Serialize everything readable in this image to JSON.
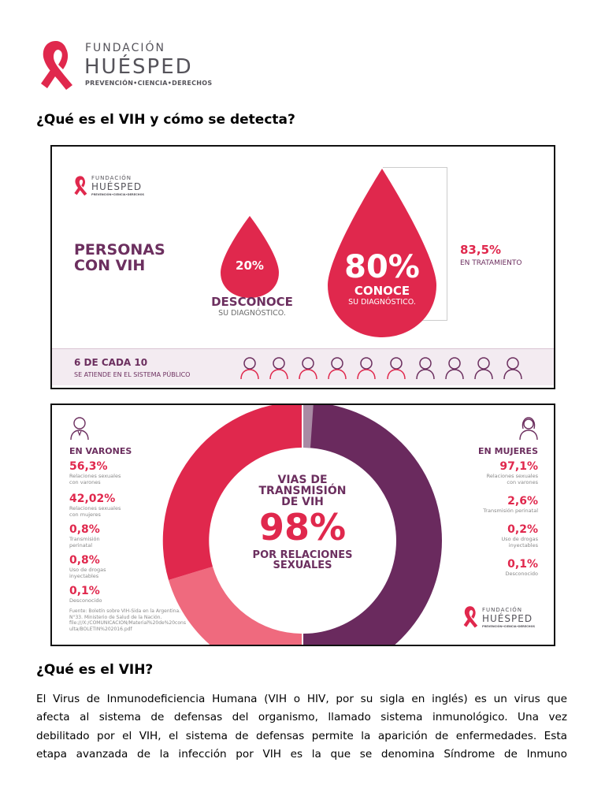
{
  "header": {
    "logo_line1": "FUNDACIÓN",
    "logo_line2": "HUÉSPED",
    "logo_line3": "PREVENCIÓN•CIENCIA•DERECHOS"
  },
  "section1_title": "¿Qué es el VIH y cómo se detecta?",
  "infographic1": {
    "logo_line1": "FUNDACIÓN",
    "logo_line2": "HUÉSPED",
    "logo_line3": "PREVENCIÓN•CIENCIA•DERECHOS",
    "heading_line1": "PERSONAS",
    "heading_line2": "CON VIH",
    "small_drop_value": "20%",
    "small_label_1": "DESCONOCE",
    "small_label_2": "SU DIAGNÓSTICO.",
    "big_drop_value": "80%",
    "big_drop_label_1": "CONOCE",
    "big_drop_label_2": "SU DIAGNÓSTICO.",
    "treatment_value": "83,5%",
    "treatment_label": "EN TRATAMIENTO",
    "footer_big": "6 DE CADA 10",
    "footer_small": "SE ATIENDE EN EL SISTEMA PÚBLICO",
    "colors": {
      "red": "#e0284d",
      "mauve": "#6c2f5f",
      "band": "#f3ebf1"
    }
  },
  "infographic2": {
    "left_heading": "EN VARONES",
    "left_items": [
      {
        "value": "56,3%",
        "label_1": "Relaciones sexuales",
        "label_2": "con varones"
      },
      {
        "value": "42,02%",
        "label_1": "Relaciones sexuales",
        "label_2": "con mujeres"
      },
      {
        "value": "0,8%",
        "label_1": "Transmisión",
        "label_2": "perinatal"
      },
      {
        "value": "0,8%",
        "label_1": "Uso de drogas",
        "label_2": "inyectables"
      },
      {
        "value": "0,1%",
        "label_1": "Desconocido",
        "label_2": ""
      }
    ],
    "source_1": "Fuente: Boletín sobre VIH-Sida en la Argentina.",
    "source_2": "N°33. Ministerio de Salud de la Nación.",
    "source_3": "file:///X:/COMUNICACION/Material%20de%20cons",
    "source_4": "ulta/BOLETIN%202016.pdf",
    "center_line1": "VIAS DE",
    "center_line2": "TRANSMISIÓN",
    "center_line3": "DE VIH",
    "center_value": "98%",
    "center_line4": "POR RELACIONES",
    "center_line5": "SEXUALES",
    "right_heading": "EN MUJERES",
    "right_items": [
      {
        "value": "97,1%",
        "label_1": "Relaciones sexuales",
        "label_2": "con varones"
      },
      {
        "value": "2,6%",
        "label_1": "Transmisión perinatal",
        "label_2": ""
      },
      {
        "value": "0,2%",
        "label_1": "Uso de drogas",
        "label_2": "inyectables"
      },
      {
        "value": "0,1%",
        "label_1": "Desconocido",
        "label_2": ""
      }
    ],
    "logo_line1": "FUNDACIÓN",
    "logo_line2": "HUÉSPED",
    "logo_line3": "PREVENCIÓN•CIENCIA•DERECHOS",
    "colors": {
      "red": "#e0284d",
      "pink": "#ef6a7e",
      "purple": "#6a2a5e",
      "light_purple": "#a98aa4"
    }
  },
  "section2_title": "¿Qué es el VIH?",
  "paragraph_lines": [
    "El Virus de Inmunodeficiencia Humana (VIH o HIV, por su sigla en inglés) es un virus que",
    "afecta al sistema de defensas del organismo, llamado sistema inmunológico. Una vez",
    "debilitado por el VIH, el sistema de defensas permite la aparición de enfermedades. Esta",
    "etapa avanzada de la infección por VIH es la que se denomina Síndrome de Inmuno"
  ]
}
